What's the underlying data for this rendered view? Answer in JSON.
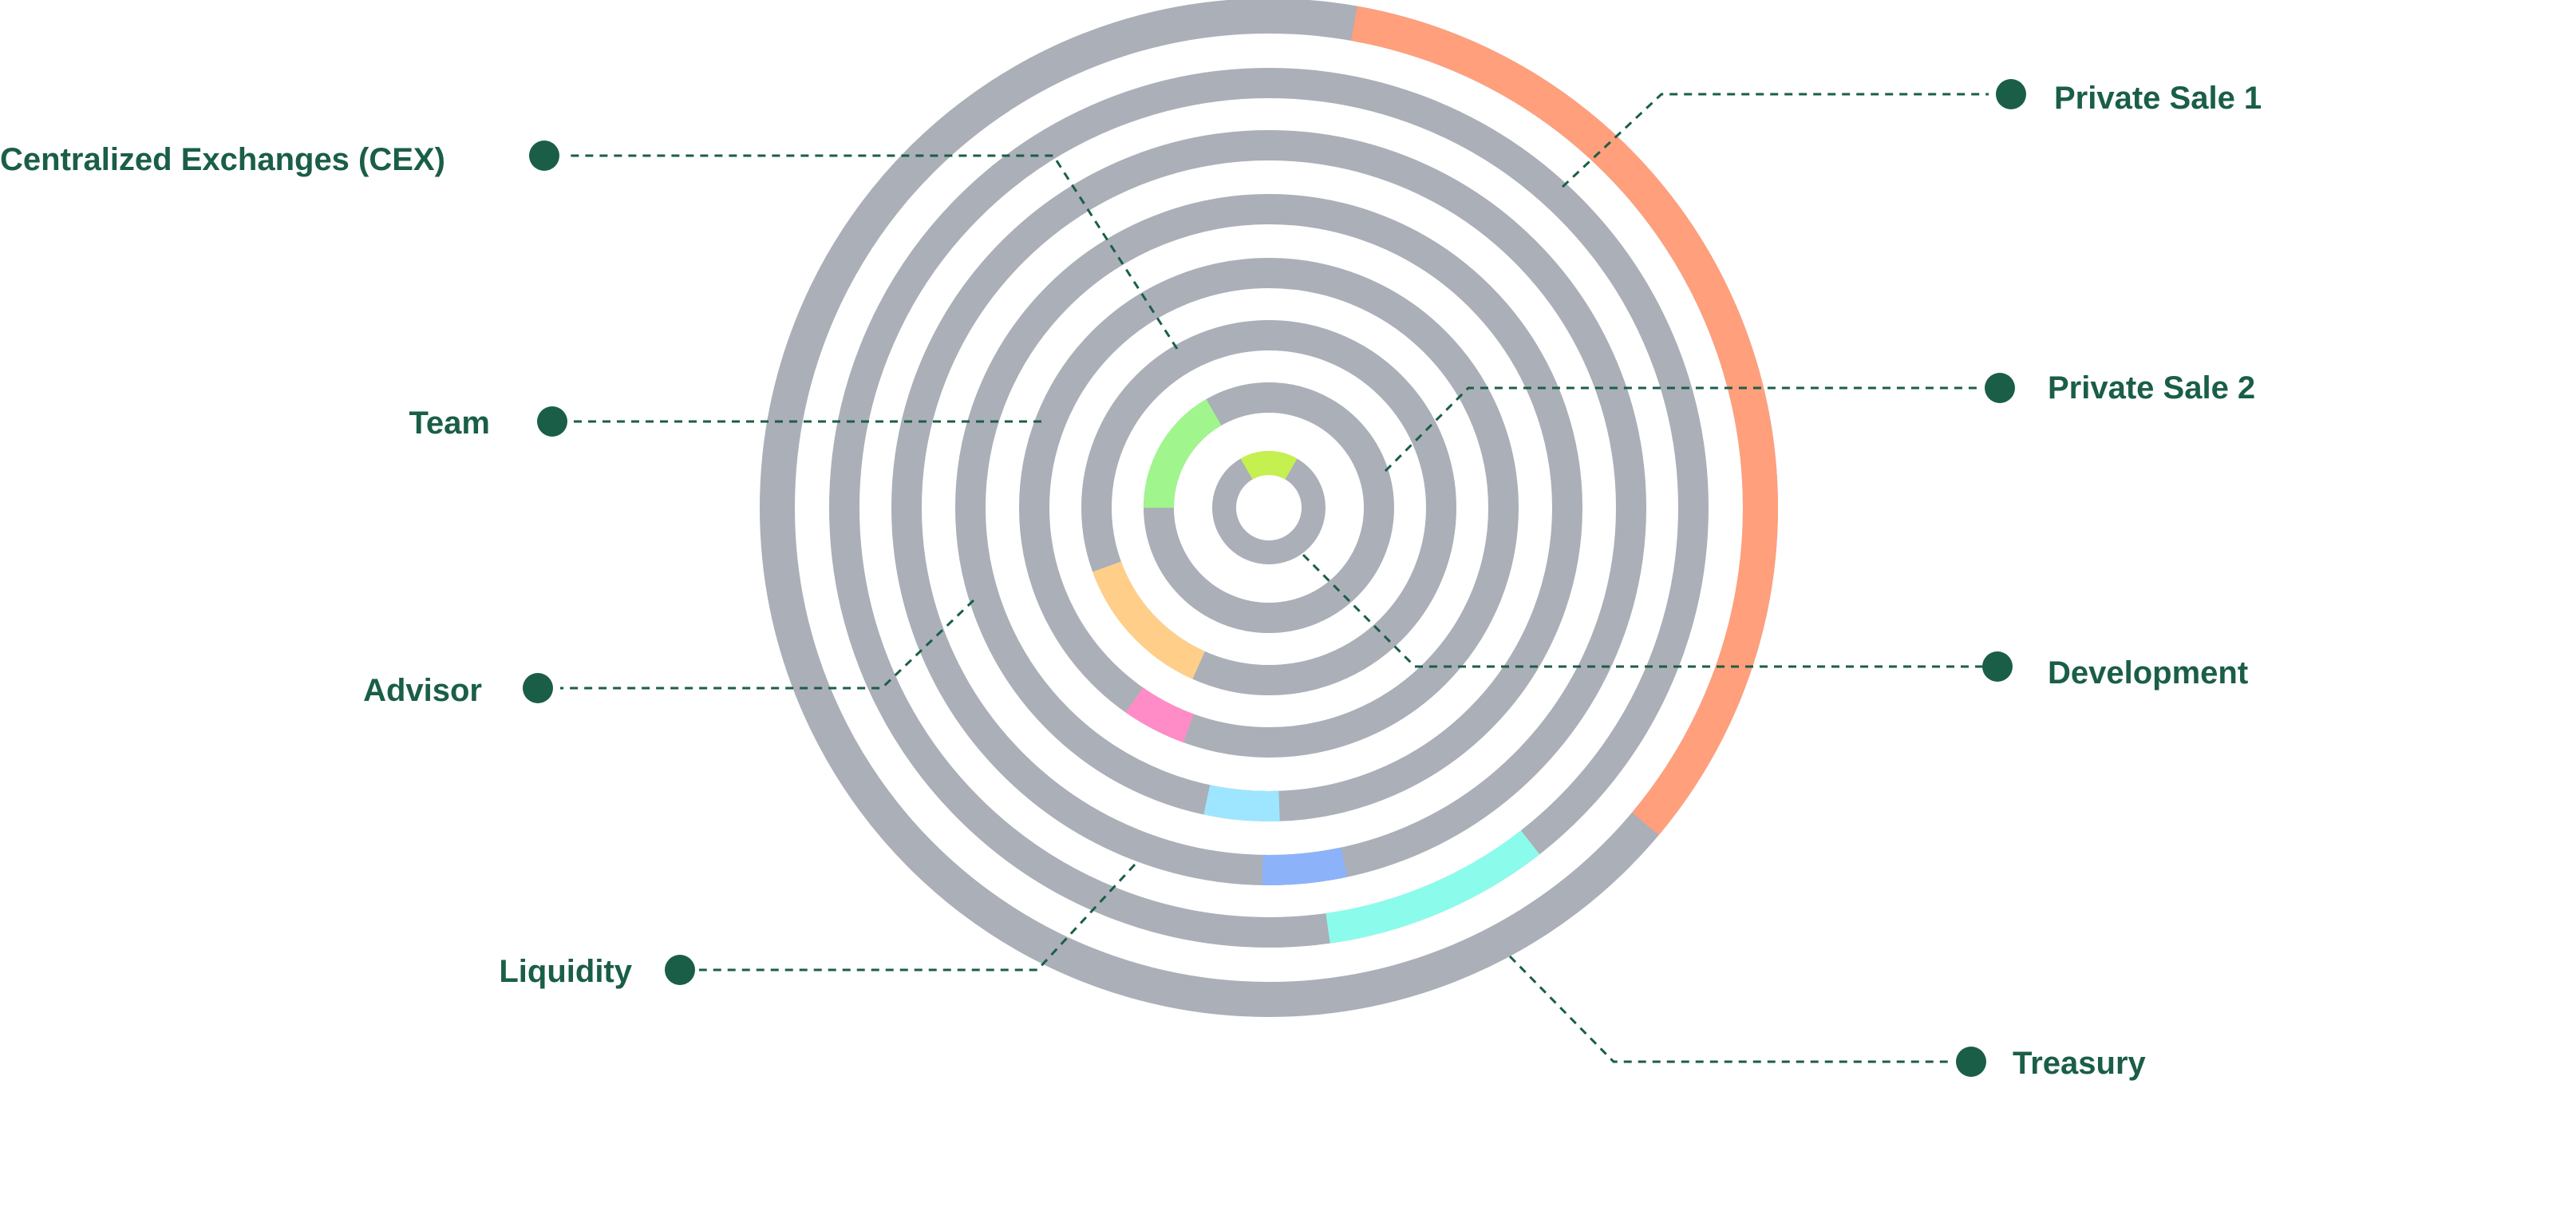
{
  "chart_data": {
    "type": "radial-bar",
    "track_color": "#abafb8",
    "leader_color": "#1a5e48",
    "label_color": "#1a5e48",
    "series": [
      {
        "name": "Development",
        "start_deg": -30,
        "end_deg": 30,
        "color": "#c4f050"
      },
      {
        "name": "Centralized Exchanges (CEX)",
        "start_deg": -90,
        "end_deg": -30,
        "color": "#a0f58c"
      },
      {
        "name": "Team",
        "start_deg": -156,
        "end_deg": -110,
        "color": "#ffcf8a"
      },
      {
        "name": "Advisor",
        "start_deg": -160,
        "end_deg": -145,
        "color": "#ff8cc6"
      },
      {
        "name": "Liquidity",
        "start_deg": 178,
        "end_deg": 192,
        "color": "#9ee6ff"
      },
      {
        "name": "Private Sale 2",
        "start_deg": 168,
        "end_deg": 181,
        "color": "#8cb3fa"
      },
      {
        "name": "Treasury",
        "start_deg": 142,
        "end_deg": 172,
        "color": "#8bfcec"
      },
      {
        "name": "Private Sale 1",
        "start_deg": 10,
        "end_deg": 130,
        "color": "#ff9f7c"
      }
    ]
  }
}
